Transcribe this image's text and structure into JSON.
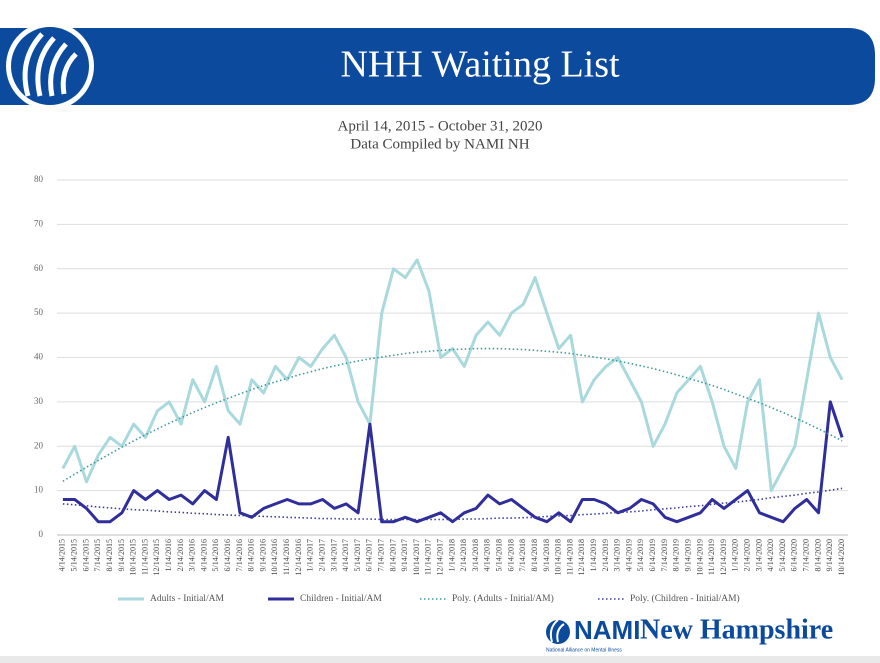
{
  "header": {
    "title": "NHH Waiting List"
  },
  "footer": {
    "brand": "NAMI",
    "region": "New Hampshire",
    "tagline": "National Alliance on Mental Illness"
  },
  "chart_data": {
    "type": "line",
    "subtitle": [
      "April 14, 2015 - October 31, 2020",
      "Data Compiled by NAMI NH"
    ],
    "categories": [
      "4/14/2015",
      "5/14/2015",
      "6/14/2015",
      "7/14/2015",
      "8/14/2015",
      "9/14/2015",
      "10/14/2015",
      "11/14/2015",
      "12/14/2015",
      "1/14/2016",
      "2/14/2016",
      "3/14/2016",
      "4/14/2016",
      "5/14/2016",
      "6/14/2016",
      "7/14/2016",
      "8/14/2016",
      "9/14/2016",
      "10/14/2016",
      "11/14/2016",
      "12/14/2016",
      "1/14/2017",
      "2/14/2017",
      "3/14/2017",
      "4/14/2017",
      "5/14/2017",
      "6/14/2017",
      "7/14/2017",
      "8/14/2017",
      "9/14/2017",
      "10/14/2017",
      "11/14/2017",
      "12/14/2017",
      "1/14/2018",
      "2/14/2018",
      "3/14/2018",
      "4/14/2018",
      "5/14/2018",
      "6/14/2018",
      "7/14/2018",
      "8/14/2018",
      "9/14/2018",
      "10/14/2018",
      "11/14/2018",
      "12/14/2018",
      "1/14/2019",
      "2/14/2019",
      "3/14/2019",
      "4/14/2019",
      "5/14/2019",
      "6/14/2019",
      "7/14/2019",
      "8/14/2019",
      "9/14/2019",
      "10/14/2019",
      "11/14/2019",
      "12/14/2019",
      "1/14/2020",
      "2/14/2020",
      "3/14/2020",
      "4/14/2020",
      "5/14/2020",
      "6/14/2020",
      "7/14/2020",
      "8/14/2020",
      "9/14/2020",
      "10/14/2020"
    ],
    "series": [
      {
        "name": "Adults - Initial/AM",
        "color": "#a9d9dc",
        "style": "solid",
        "width": 3,
        "values": [
          15,
          20,
          12,
          18,
          22,
          20,
          25,
          22,
          28,
          30,
          25,
          35,
          30,
          38,
          28,
          25,
          35,
          32,
          38,
          35,
          40,
          38,
          42,
          45,
          40,
          30,
          25,
          50,
          60,
          58,
          62,
          55,
          40,
          42,
          38,
          45,
          48,
          45,
          50,
          52,
          58,
          50,
          42,
          45,
          30,
          35,
          38,
          40,
          35,
          30,
          20,
          25,
          32,
          35,
          38,
          30,
          20,
          15,
          30,
          35,
          10,
          15,
          20,
          35,
          50,
          40,
          35
        ]
      },
      {
        "name": "Children - Initial/AM",
        "color": "#2f2e9b",
        "style": "solid",
        "width": 3,
        "values": [
          8,
          8,
          6,
          3,
          3,
          5,
          10,
          8,
          10,
          8,
          9,
          7,
          10,
          8,
          22,
          5,
          4,
          6,
          7,
          8,
          7,
          7,
          8,
          6,
          7,
          5,
          25,
          3,
          3,
          4,
          3,
          4,
          5,
          3,
          5,
          6,
          9,
          7,
          8,
          6,
          4,
          3,
          5,
          3,
          8,
          8,
          7,
          5,
          6,
          8,
          7,
          4,
          3,
          4,
          5,
          8,
          6,
          8,
          10,
          5,
          4,
          3,
          6,
          8,
          5,
          30,
          22
        ]
      },
      {
        "name": "Poly. (Adults - Initial/AM)",
        "color": "#3f9b9b",
        "style": "dotted",
        "width": 1.6,
        "values": [
          12.1,
          13.7,
          15.3,
          16.8,
          18.3,
          19.8,
          21.2,
          22.6,
          23.9,
          25.2,
          26.4,
          27.6,
          28.7,
          29.8,
          30.8,
          31.8,
          32.8,
          33.7,
          34.5,
          35.3,
          36.1,
          36.8,
          37.5,
          38.1,
          38.7,
          39.2,
          39.7,
          40.1,
          40.5,
          40.9,
          41.2,
          41.4,
          41.6,
          41.8,
          41.9,
          42.0,
          42.0,
          42.0,
          41.9,
          41.8,
          41.6,
          41.4,
          41.2,
          40.9,
          40.5,
          40.1,
          39.7,
          39.2,
          38.7,
          38.1,
          37.5,
          36.8,
          36.1,
          35.3,
          34.5,
          33.7,
          32.8,
          31.8,
          30.8,
          29.8,
          28.7,
          27.6,
          26.4,
          25.2,
          23.9,
          22.6,
          21.2
        ]
      },
      {
        "name": "Poly. (Children - Initial/AM)",
        "color": "#3b3b9b",
        "style": "dotted",
        "width": 1.6,
        "values": [
          7.0,
          6.8,
          6.6,
          6.3,
          6.1,
          5.9,
          5.7,
          5.6,
          5.4,
          5.2,
          5.1,
          4.9,
          4.8,
          4.6,
          4.5,
          4.4,
          4.3,
          4.2,
          4.1,
          4.0,
          3.9,
          3.8,
          3.7,
          3.7,
          3.6,
          3.6,
          3.6,
          3.5,
          3.5,
          3.5,
          3.5,
          3.5,
          3.5,
          3.5,
          3.6,
          3.6,
          3.7,
          3.8,
          3.8,
          3.9,
          4.0,
          4.2,
          4.3,
          4.4,
          4.6,
          4.7,
          4.9,
          5.1,
          5.2,
          5.4,
          5.7,
          5.9,
          6.1,
          6.4,
          6.6,
          6.9,
          7.2,
          7.4,
          7.7,
          8.0,
          8.4,
          8.7,
          9.0,
          9.4,
          9.7,
          10.1,
          10.5
        ]
      }
    ],
    "ylim": [
      0,
      80
    ],
    "yticks": [
      0,
      10,
      20,
      30,
      40,
      50,
      60,
      70,
      80
    ],
    "grid": true,
    "legend": "bottom"
  }
}
